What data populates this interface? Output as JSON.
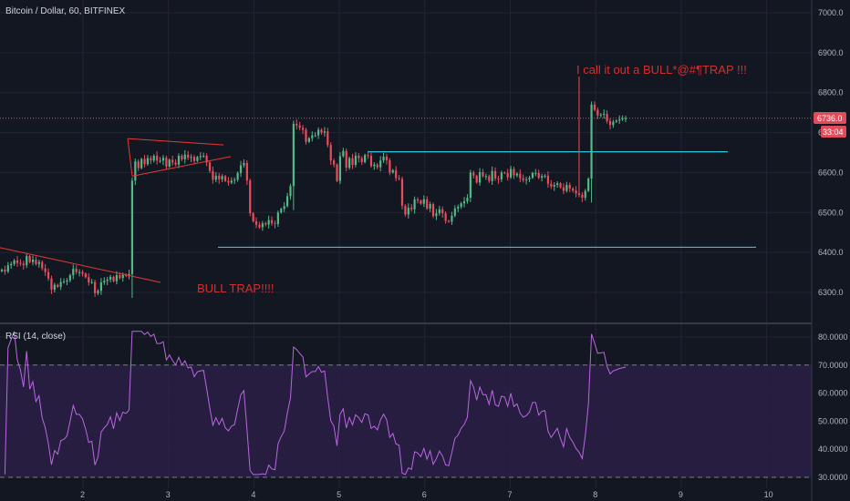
{
  "header": {
    "title": "Bitcoin / Dollar, 60, BITFINEX"
  },
  "chart_data": [
    {
      "type": "candlestick",
      "title": "Bitcoin / Dollar, 60, BITFINEX",
      "ylim": [
        6230,
        7030
      ],
      "y_ticks": [
        "7000.0",
        "6900.0",
        "6800.0",
        "6700.0",
        "6600.0",
        "6500.0",
        "6400.0",
        "6300.0"
      ],
      "x_ticks": [
        "2",
        "3",
        "4",
        "5",
        "6",
        "7",
        "8",
        "9",
        "10"
      ],
      "price_label": "6736.0",
      "countdown_label": "33:04",
      "grid": true,
      "colors": {
        "up": "#53b987",
        "down": "#eb4d5c",
        "annotation": "#d32f2f",
        "hline": "#26c6da",
        "trend": "#e53935",
        "price_line": "#e04c5a"
      },
      "closes": [
        6357,
        6352,
        6368,
        6371,
        6380,
        6374,
        6372,
        6368,
        6391,
        6376,
        6382,
        6371,
        6376,
        6360,
        6351,
        6335,
        6307,
        6319,
        6314,
        6326,
        6327,
        6330,
        6343,
        6359,
        6351,
        6351,
        6347,
        6338,
        6325,
        6326,
        6298,
        6304,
        6325,
        6329,
        6332,
        6339,
        6328,
        6343,
        6336,
        6344,
        6343,
        6346,
        6580,
        6628,
        6611,
        6634,
        6621,
        6636,
        6630,
        6642,
        6630,
        6630,
        6637,
        6615,
        6632,
        6625,
        6620,
        6642,
        6633,
        6645,
        6637,
        6639,
        6629,
        6639,
        6641,
        6642,
        6625,
        6604,
        6582,
        6592,
        6583,
        6591,
        6579,
        6575,
        6580,
        6582,
        6599,
        6618,
        6624,
        6580,
        6498,
        6478,
        6469,
        6463,
        6473,
        6470,
        6481,
        6473,
        6471,
        6500,
        6509,
        6516,
        6541,
        6566,
        6722,
        6718,
        6712,
        6707,
        6677,
        6686,
        6693,
        6693,
        6707,
        6700,
        6703,
        6669,
        6630,
        6620,
        6579,
        6641,
        6654,
        6612,
        6636,
        6619,
        6642,
        6636,
        6626,
        6644,
        6642,
        6616,
        6620,
        6613,
        6630,
        6640,
        6631,
        6600,
        6606,
        6586,
        6584,
        6517,
        6495,
        6512,
        6508,
        6533,
        6530,
        6522,
        6533,
        6510,
        6521,
        6491,
        6498,
        6508,
        6498,
        6479,
        6477,
        6492,
        6510,
        6514,
        6523,
        6528,
        6537,
        6600,
        6592,
        6575,
        6601,
        6591,
        6591,
        6579,
        6604,
        6585,
        6583,
        6600,
        6599,
        6588,
        6609,
        6593,
        6597,
        6586,
        6581,
        6583,
        6587,
        6599,
        6599,
        6587,
        6591,
        6592,
        6572,
        6565,
        6569,
        6573,
        6563,
        6554,
        6569,
        6560,
        6555,
        6548,
        6544,
        6537,
        6554,
        6585,
        6770,
        6757,
        6743,
        6745,
        6747,
        6729,
        6719,
        6727,
        6730,
        6733,
        6735,
        6736
      ]
    },
    {
      "type": "line",
      "title": "RSI (14, close)",
      "ylim": [
        29,
        83
      ],
      "y_ticks": [
        "80.0000",
        "70.0000",
        "60.0000",
        "50.0000",
        "40.0000",
        "30.0000"
      ],
      "bands": [
        30,
        70
      ],
      "colors": {
        "line": "#b968e0",
        "band_fill": "#2b1e45"
      }
    }
  ],
  "annotations": {
    "bull_trap": "BULL TRAP!!!!",
    "call_out": "I call it out a BULL*@#¶TRAP !!!"
  }
}
